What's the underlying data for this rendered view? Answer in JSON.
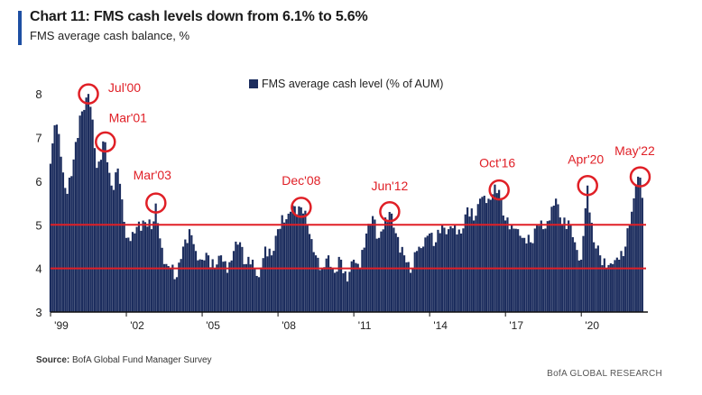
{
  "header": {
    "title": "Chart 11: FMS cash levels down from 6.1% to 5.6%",
    "subtitle": "FMS average cash balance, %"
  },
  "footer": {
    "source_label": "Source:",
    "source_text": "BofA Global Fund Manager Survey",
    "brand": "BofA GLOBAL RESEARCH"
  },
  "colors": {
    "bar": "#1c2d5e",
    "highlight": "#e01f26",
    "axis": "#111111",
    "accent": "#1e4fa3"
  },
  "chart_data": {
    "type": "bar",
    "legend": "FMS average cash level (% of AUM)",
    "legend_position": "top",
    "grid": false,
    "ylim": [
      3,
      8.5
    ],
    "yticks": [
      3,
      4,
      5,
      6,
      7,
      8
    ],
    "x_start": 1999.0,
    "x_end": 2022.42,
    "xticks": [
      {
        "label": "'99",
        "pos": 1999.0
      },
      {
        "label": "'02",
        "pos": 2002.0
      },
      {
        "label": "'05",
        "pos": 2005.0
      },
      {
        "label": "'08",
        "pos": 2008.0
      },
      {
        "label": "'11",
        "pos": 2011.0
      },
      {
        "label": "'14",
        "pos": 2014.0
      },
      {
        "label": "'17",
        "pos": 2017.0
      },
      {
        "label": "'20",
        "pos": 2020.0
      }
    ],
    "reference_lines": [
      5.0,
      4.0
    ],
    "annotations": [
      {
        "label": "Jul'00",
        "x": 2000.5,
        "y": 8.0
      },
      {
        "label": "Mar'01",
        "x": 2001.17,
        "y": 6.9
      },
      {
        "label": "Mar'03",
        "x": 2003.17,
        "y": 5.5
      },
      {
        "label": "Dec'08",
        "x": 2008.92,
        "y": 5.4
      },
      {
        "label": "Jun'12",
        "x": 2012.42,
        "y": 5.3
      },
      {
        "label": "Oct'16",
        "x": 2016.75,
        "y": 5.8
      },
      {
        "label": "Apr'20",
        "x": 2020.25,
        "y": 5.9
      },
      {
        "label": "May'22",
        "x": 2022.33,
        "y": 6.1
      }
    ],
    "anchors": [
      [
        1999.0,
        6.4
      ],
      [
        1999.17,
        7.3
      ],
      [
        1999.33,
        7.1
      ],
      [
        1999.5,
        6.2
      ],
      [
        1999.67,
        5.7
      ],
      [
        1999.83,
        6.1
      ],
      [
        2000.0,
        6.9
      ],
      [
        2000.25,
        7.6
      ],
      [
        2000.5,
        8.0
      ],
      [
        2000.67,
        7.4
      ],
      [
        2000.83,
        6.3
      ],
      [
        2001.17,
        6.9
      ],
      [
        2001.33,
        6.2
      ],
      [
        2001.5,
        5.8
      ],
      [
        2001.67,
        6.3
      ],
      [
        2001.83,
        5.6
      ],
      [
        2002.0,
        4.7
      ],
      [
        2002.33,
        4.8
      ],
      [
        2002.67,
        5.1
      ],
      [
        2003.0,
        4.9
      ],
      [
        2003.17,
        5.5
      ],
      [
        2003.33,
        4.7
      ],
      [
        2003.5,
        4.1
      ],
      [
        2003.75,
        4.0
      ],
      [
        2004.0,
        3.8
      ],
      [
        2004.25,
        4.5
      ],
      [
        2004.5,
        4.9
      ],
      [
        2004.75,
        4.4
      ],
      [
        2005.0,
        4.2
      ],
      [
        2005.25,
        4.3
      ],
      [
        2005.5,
        4.0
      ],
      [
        2005.75,
        4.3
      ],
      [
        2006.0,
        3.9
      ],
      [
        2006.25,
        4.4
      ],
      [
        2006.5,
        4.6
      ],
      [
        2006.75,
        4.1
      ],
      [
        2007.0,
        4.2
      ],
      [
        2007.25,
        3.8
      ],
      [
        2007.5,
        4.5
      ],
      [
        2007.75,
        4.3
      ],
      [
        2008.0,
        4.9
      ],
      [
        2008.5,
        5.3
      ],
      [
        2008.92,
        5.4
      ],
      [
        2009.17,
        5.0
      ],
      [
        2009.5,
        4.3
      ],
      [
        2009.75,
        4.0
      ],
      [
        2010.0,
        4.3
      ],
      [
        2010.25,
        3.9
      ],
      [
        2010.5,
        4.2
      ],
      [
        2010.75,
        3.7
      ],
      [
        2011.0,
        4.2
      ],
      [
        2011.25,
        4.0
      ],
      [
        2011.5,
        4.8
      ],
      [
        2011.75,
        5.2
      ],
      [
        2012.0,
        4.7
      ],
      [
        2012.17,
        4.9
      ],
      [
        2012.42,
        5.3
      ],
      [
        2012.67,
        4.8
      ],
      [
        2013.0,
        4.3
      ],
      [
        2013.25,
        3.9
      ],
      [
        2013.5,
        4.4
      ],
      [
        2013.75,
        4.5
      ],
      [
        2014.0,
        4.8
      ],
      [
        2014.25,
        4.6
      ],
      [
        2014.5,
        5.0
      ],
      [
        2014.75,
        4.9
      ],
      [
        2015.0,
        5.0
      ],
      [
        2015.25,
        4.8
      ],
      [
        2015.5,
        5.4
      ],
      [
        2015.75,
        5.1
      ],
      [
        2016.0,
        5.6
      ],
      [
        2016.25,
        5.5
      ],
      [
        2016.5,
        5.7
      ],
      [
        2016.75,
        5.8
      ],
      [
        2017.0,
        5.1
      ],
      [
        2017.25,
        5.0
      ],
      [
        2017.5,
        4.9
      ],
      [
        2017.75,
        4.7
      ],
      [
        2018.0,
        4.6
      ],
      [
        2018.25,
        5.0
      ],
      [
        2018.5,
        4.9
      ],
      [
        2018.75,
        5.1
      ],
      [
        2019.0,
        5.6
      ],
      [
        2019.25,
        5.0
      ],
      [
        2019.5,
        5.1
      ],
      [
        2019.75,
        4.6
      ],
      [
        2020.0,
        4.2
      ],
      [
        2020.25,
        5.9
      ],
      [
        2020.5,
        4.6
      ],
      [
        2020.75,
        4.3
      ],
      [
        2021.0,
        4.0
      ],
      [
        2021.25,
        4.1
      ],
      [
        2021.5,
        4.2
      ],
      [
        2021.75,
        4.5
      ],
      [
        2022.0,
        5.3
      ],
      [
        2022.17,
        5.9
      ],
      [
        2022.33,
        6.1
      ],
      [
        2022.42,
        5.6
      ]
    ]
  }
}
